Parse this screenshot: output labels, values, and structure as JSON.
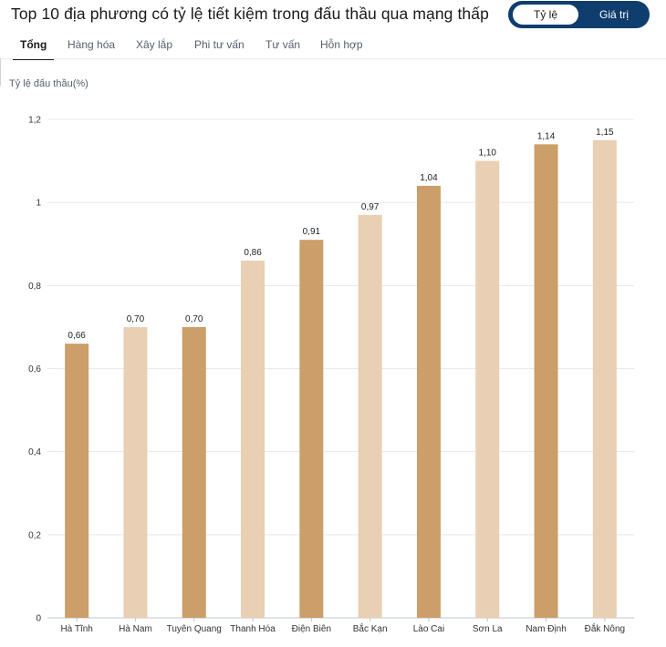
{
  "header": {
    "title": "Top 10 địa phương có tỷ lệ tiết kiệm trong đấu thầu qua mạng thấp",
    "toggle": {
      "active": "Tỷ lệ",
      "inactive": "Giá trị"
    }
  },
  "tabs": [
    {
      "label": "Tổng",
      "active": true
    },
    {
      "label": "Hàng hóa"
    },
    {
      "label": "Xây lắp"
    },
    {
      "label": "Phi tư vấn"
    },
    {
      "label": "Tư vấn"
    },
    {
      "label": "Hỗn hợp"
    }
  ],
  "colors": {
    "dark_bar": "#cc9e69",
    "light_bar": "#e9cfb3",
    "toggle_bg": "#0f3d6e",
    "grid": "#e6e8eb"
  },
  "chart_data": {
    "type": "bar",
    "ylabel": "Tỷ lệ đấu thầu(%)",
    "categories": [
      "Hà Tĩnh",
      "Hà Nam",
      "Tuyên Quang",
      "Thanh Hóa",
      "Điện Biên",
      "Bắc Kạn",
      "Lào Cai",
      "Sơn La",
      "Nam Định",
      "Đắk Nông"
    ],
    "values": [
      0.66,
      0.7,
      0.7,
      0.86,
      0.91,
      0.97,
      1.04,
      1.1,
      1.14,
      1.15
    ],
    "value_labels": [
      "0,66",
      "0,70",
      "0,70",
      "0,86",
      "0,91",
      "0,97",
      "1,04",
      "1,10",
      "1,14",
      "1,15"
    ],
    "bar_shades": [
      "dark",
      "light",
      "dark",
      "light",
      "dark",
      "light",
      "dark",
      "light",
      "dark",
      "light"
    ],
    "ylim": [
      0,
      1.2
    ],
    "yticks": [
      0,
      0.2,
      0.4,
      0.6,
      0.8,
      1,
      1.2
    ],
    "ytick_labels": [
      "0",
      "0,2",
      "0,4",
      "0,6",
      "0,8",
      "1",
      "1,2"
    ],
    "grid": true
  }
}
